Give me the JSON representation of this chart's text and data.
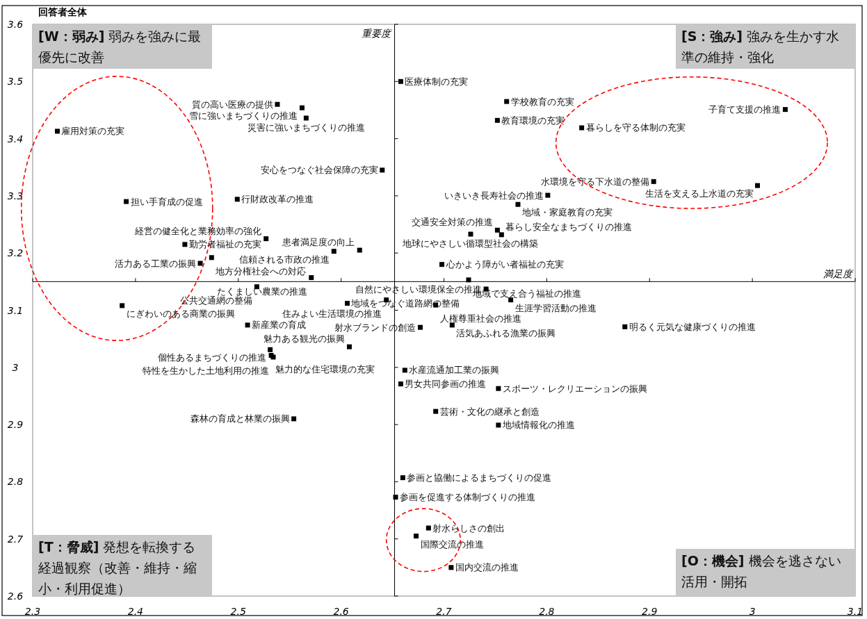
{
  "chart_data": {
    "type": "scatter",
    "title": "回答者全体",
    "color": "#000000",
    "marker": "square",
    "grid": false,
    "xlim": [
      2.3,
      3.1
    ],
    "ylim": [
      2.6,
      3.6
    ],
    "xticks": [
      2.3,
      2.4,
      2.5,
      2.6,
      2.7,
      2.8,
      2.9,
      3,
      3.1
    ],
    "yticks": [
      2.6,
      2.7,
      2.8,
      2.9,
      3,
      3.1,
      3.2,
      3.3,
      3.4,
      3.5,
      3.6
    ],
    "x": [
      2.658,
      2.538,
      2.562,
      2.566,
      2.324,
      2.761,
      2.752,
      3.032,
      2.834,
      2.64,
      2.904,
      3.005,
      2.801,
      2.772,
      2.391,
      2.499,
      2.752,
      2.726,
      2.756,
      2.527,
      2.448,
      2.593,
      2.618,
      2.474,
      2.463,
      2.698,
      2.571,
      2.724,
      2.518,
      2.741,
      2.644,
      2.387,
      2.606,
      2.692,
      2.765,
      2.509,
      2.708,
      2.677,
      2.876,
      2.608,
      2.531,
      2.532,
      2.534,
      2.662,
      2.658,
      2.753,
      2.692,
      2.554,
      2.753,
      2.66,
      2.653,
      2.685,
      2.673,
      2.707
    ],
    "values": [
      3.5,
      3.46,
      3.454,
      3.436,
      3.413,
      3.465,
      3.432,
      3.451,
      3.419,
      3.345,
      3.325,
      3.318,
      3.301,
      3.285,
      3.29,
      3.294,
      3.24,
      3.233,
      3.232,
      3.225,
      3.215,
      3.203,
      3.205,
      3.192,
      3.182,
      3.18,
      3.157,
      3.153,
      3.141,
      3.137,
      3.118,
      3.108,
      3.112,
      3.109,
      3.118,
      3.074,
      3.074,
      3.07,
      3.071,
      3.036,
      3.031,
      3.021,
      3.018,
      2.995,
      2.971,
      2.963,
      2.923,
      2.91,
      2.899,
      2.807,
      2.773,
      2.719,
      2.705,
      2.65
    ],
    "ref_lines": [
      {
        "axis": "x",
        "value": 2.652,
        "label": "重要度"
      },
      {
        "axis": "y",
        "value": 3.15,
        "label": "満足度"
      }
    ],
    "annotations": [
      "**[W：弱み]** 弱みを強みに最優先に改善",
      "**[S：強み]** 強みを生かす水準の維持・強化",
      "**[T：脅威]** 発想を転換する経過観察（改善・維持・縮小・利用促進）",
      "**[O：機会]** 機会を逃さない活用・開拓",
      {
        "text": "医療体制の充実",
        "x": 2.658,
        "y": 3.5
      },
      {
        "text": "質の高い医療の提供",
        "x": 2.538,
        "y": 3.46
      },
      {
        "text": "雪に強いまちづくりの推進",
        "x": 2.562,
        "y": 3.454
      },
      {
        "text": "災害に強いまちづくりの推進",
        "x": 2.566,
        "y": 3.436
      },
      {
        "text": "雇用対策の充実",
        "x": 2.324,
        "y": 3.413
      },
      {
        "text": "学校教育の充実",
        "x": 2.761,
        "y": 3.465
      },
      {
        "text": "教育環境の充実",
        "x": 2.752,
        "y": 3.432
      },
      {
        "text": "子育て支援の推進",
        "x": 3.032,
        "y": 3.451
      },
      {
        "text": "暮らしを守る体制の充実",
        "x": 2.834,
        "y": 3.419
      },
      {
        "text": "安心をつなぐ社会保障の充実",
        "x": 2.64,
        "y": 3.345
      },
      {
        "text": "水環境を守る下水道の整備",
        "x": 2.904,
        "y": 3.325
      },
      {
        "text": "生活を支える上水道の充実",
        "x": 3.005,
        "y": 3.318
      },
      {
        "text": "いきいき長寿社会の推進",
        "x": 2.801,
        "y": 3.301
      },
      {
        "text": "地域・家庭教育の充実",
        "x": 2.772,
        "y": 3.285
      },
      {
        "text": "担い手育成の促進",
        "x": 2.391,
        "y": 3.29
      },
      {
        "text": "行財政改革の推進",
        "x": 2.499,
        "y": 3.294
      },
      {
        "text": "交通安全対策の推進",
        "x": 2.752,
        "y": 3.24
      },
      {
        "text": "地球にやさしい循環型社会の構築",
        "x": 2.726,
        "y": 3.233
      },
      {
        "text": "暮らし安全なまちづくりの推進",
        "x": 2.756,
        "y": 3.232
      },
      {
        "text": "経営の健全化と業務効率の強化",
        "x": 2.527,
        "y": 3.225
      },
      {
        "text": "勤労者福祉の充実",
        "x": 2.448,
        "y": 3.215
      },
      {
        "text": "信頼される市政の推進",
        "x": 2.593,
        "y": 3.203
      },
      {
        "text": "患者満足度の向上",
        "x": 2.618,
        "y": 3.205
      },
      {
        "text": "地方分権社会への対応",
        "x": 2.474,
        "y": 3.192
      },
      {
        "text": "活力ある工業の振興",
        "x": 2.463,
        "y": 3.182
      },
      {
        "text": "心かよう障がい者福祉の充実",
        "x": 2.698,
        "y": 3.18
      },
      {
        "text": "たくましい農業の推進",
        "x": 2.571,
        "y": 3.157
      },
      {
        "text": "地域で支え合う福祉の推進",
        "x": 2.724,
        "y": 3.153
      },
      {
        "text": "公共交通網の整備",
        "x": 2.518,
        "y": 3.141
      },
      {
        "text": "自然にやさしい環境保全の推進",
        "x": 2.741,
        "y": 3.137
      },
      {
        "text": "住みよい生活環境の推進",
        "x": 2.644,
        "y": 3.118
      },
      {
        "text": "にぎわいのある商業の振興",
        "x": 2.387,
        "y": 3.108
      },
      {
        "text": "地域をつなぐ道路網の整備",
        "x": 2.606,
        "y": 3.112
      },
      {
        "text": "人権尊重社会の推進",
        "x": 2.692,
        "y": 3.109
      },
      {
        "text": "生涯学習活動の推進",
        "x": 2.765,
        "y": 3.118
      },
      {
        "text": "新産業の育成",
        "x": 2.509,
        "y": 3.074
      },
      {
        "text": "活気あふれる漁業の振興",
        "x": 2.708,
        "y": 3.074
      },
      {
        "text": "射水ブランドの創造",
        "x": 2.677,
        "y": 3.07
      },
      {
        "text": "明るく元気な健康づくりの推進",
        "x": 2.876,
        "y": 3.071
      },
      {
        "text": "魅力ある観光の振興",
        "x": 2.608,
        "y": 3.036
      },
      {
        "text": "個性あるまちづくりの推進",
        "x": 2.531,
        "y": 3.031
      },
      {
        "text": "魅力的な住宅環境の充実",
        "x": 2.532,
        "y": 3.021
      },
      {
        "text": "特性を生かした土地利用の推進",
        "x": 2.534,
        "y": 3.018
      },
      {
        "text": "水産流通加工業の振興",
        "x": 2.662,
        "y": 2.995
      },
      {
        "text": "男女共同参画の推進",
        "x": 2.658,
        "y": 2.971
      },
      {
        "text": "スポーツ・レクリエーションの振興",
        "x": 2.753,
        "y": 2.963
      },
      {
        "text": "芸術・文化の継承と創造",
        "x": 2.692,
        "y": 2.923
      },
      {
        "text": "森林の育成と林業の振興",
        "x": 2.554,
        "y": 2.91
      },
      {
        "text": "地域情報化の推進",
        "x": 2.753,
        "y": 2.899
      },
      {
        "text": "参画と協働によるまちづくりの促進",
        "x": 2.66,
        "y": 2.807
      },
      {
        "text": "参画を促進する体制づくりの推進",
        "x": 2.653,
        "y": 2.773
      },
      {
        "text": "射水らしさの創出",
        "x": 2.685,
        "y": 2.719
      },
      {
        "text": "国際交流の推進",
        "x": 2.673,
        "y": 2.705
      },
      {
        "text": "国内交流の推進",
        "x": 2.707,
        "y": 2.65
      }
    ]
  }
}
